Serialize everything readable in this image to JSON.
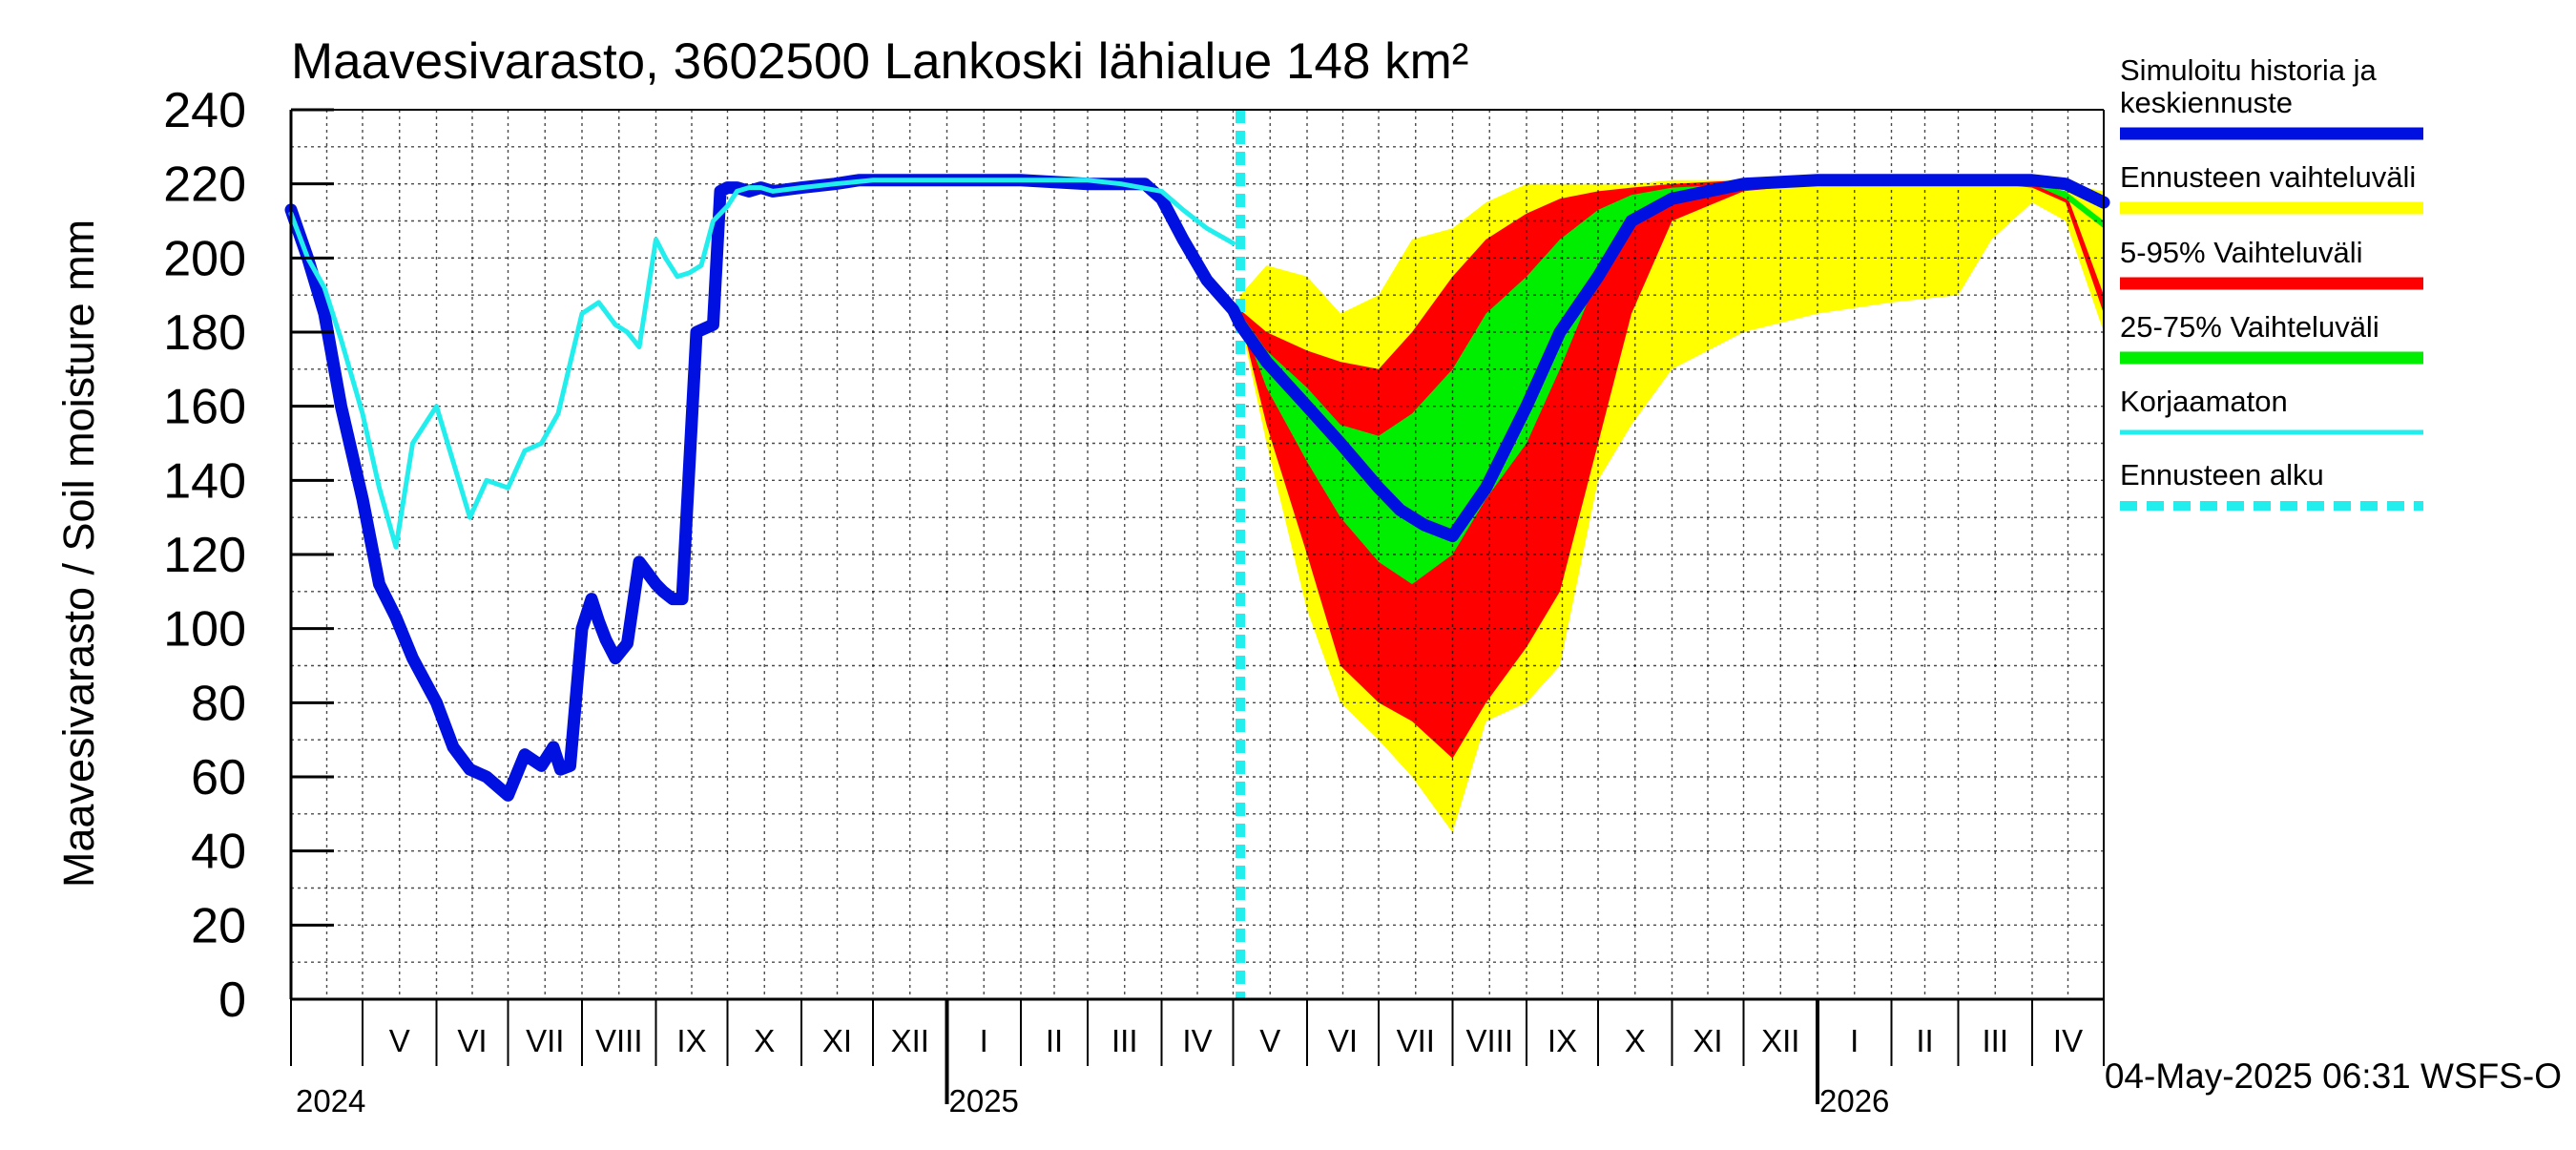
{
  "chart_data": {
    "type": "area",
    "title": "Maavesivarasto, 3602500 Lankoski lähialue 148 km²",
    "ylabel": "Maavesivarasto / Soil moisture   mm",
    "ylim": [
      0,
      240
    ],
    "yticks": [
      0,
      20,
      40,
      60,
      80,
      100,
      120,
      140,
      160,
      180,
      200,
      220,
      240
    ],
    "xlim": [
      "2024-04-01",
      "2026-05-01"
    ],
    "grid": true,
    "legend_position": "right",
    "months": [
      {
        "label": "V",
        "start": "2024-05-01"
      },
      {
        "label": "VI",
        "start": "2024-06-01"
      },
      {
        "label": "VII",
        "start": "2024-07-01"
      },
      {
        "label": "VIII",
        "start": "2024-08-01"
      },
      {
        "label": "IX",
        "start": "2024-09-01"
      },
      {
        "label": "X",
        "start": "2024-10-01"
      },
      {
        "label": "XI",
        "start": "2024-11-01"
      },
      {
        "label": "XII",
        "start": "2024-12-01"
      },
      {
        "label": "I",
        "start": "2025-01-01"
      },
      {
        "label": "II",
        "start": "2025-02-01"
      },
      {
        "label": "III",
        "start": "2025-03-01"
      },
      {
        "label": "IV",
        "start": "2025-04-01"
      },
      {
        "label": "V",
        "start": "2025-05-01"
      },
      {
        "label": "VI",
        "start": "2025-06-01"
      },
      {
        "label": "VII",
        "start": "2025-07-01"
      },
      {
        "label": "VIII",
        "start": "2025-08-01"
      },
      {
        "label": "IX",
        "start": "2025-09-01"
      },
      {
        "label": "X",
        "start": "2025-10-01"
      },
      {
        "label": "XI",
        "start": "2025-11-01"
      },
      {
        "label": "XII",
        "start": "2025-12-01"
      },
      {
        "label": "I",
        "start": "2026-01-01"
      },
      {
        "label": "II",
        "start": "2026-02-01"
      },
      {
        "label": "III",
        "start": "2026-03-01"
      },
      {
        "label": "IV",
        "start": "2026-04-01"
      }
    ],
    "years": [
      {
        "label": "2024",
        "start": "2024-05-01"
      },
      {
        "label": "2025",
        "start": "2025-01-01"
      },
      {
        "label": "2026",
        "start": "2026-01-01"
      }
    ],
    "forecast_start": "2025-05-04",
    "timestamp": "04-May-2025 06:31 WSFS-O",
    "legend": [
      {
        "label": "Simuloitu historia ja keskiennuste",
        "lines": [
          "Simuloitu historia ja",
          "keskiennuste"
        ],
        "color": "#0010e0",
        "style": "thick"
      },
      {
        "label": "Ennusteen vaihteluväli",
        "lines": [
          "Ennusteen vaihteluväli"
        ],
        "color": "#ffff00",
        "style": "band"
      },
      {
        "label": "5-95% Vaihteluväli",
        "lines": [
          "5-95% Vaihteluväli"
        ],
        "color": "#ff0000",
        "style": "band"
      },
      {
        "label": "25-75% Vaihteluväli",
        "lines": [
          "25-75% Vaihteluväli"
        ],
        "color": "#00ee00",
        "style": "band"
      },
      {
        "label": "Korjaamaton",
        "lines": [
          "Korjaamaton"
        ],
        "color": "#22eeee",
        "style": "thin"
      },
      {
        "label": "Ennusteen alku",
        "lines": [
          "Ennusteen alku"
        ],
        "color": "#22eeee",
        "style": "dashed"
      }
    ],
    "series": [
      {
        "name": "Simuloitu historia ja keskiennuste",
        "color": "#0010e0",
        "x": [
          "2024-04-01",
          "2024-04-08",
          "2024-04-15",
          "2024-04-22",
          "2024-05-01",
          "2024-05-08",
          "2024-05-15",
          "2024-05-22",
          "2024-06-01",
          "2024-06-08",
          "2024-06-15",
          "2024-06-22",
          "2024-07-01",
          "2024-07-08",
          "2024-07-15",
          "2024-07-20",
          "2024-07-23",
          "2024-07-27",
          "2024-08-01",
          "2024-08-05",
          "2024-08-08",
          "2024-08-11",
          "2024-08-15",
          "2024-08-20",
          "2024-08-25",
          "2024-09-01",
          "2024-09-04",
          "2024-09-08",
          "2024-09-12",
          "2024-09-18",
          "2024-09-25",
          "2024-09-28",
          "2024-10-01",
          "2024-10-05",
          "2024-10-10",
          "2024-10-15",
          "2024-10-20",
          "2024-11-01",
          "2024-11-15",
          "2024-11-25",
          "2024-12-01",
          "2025-01-01",
          "2025-02-01",
          "2025-03-01",
          "2025-03-15",
          "2025-03-25",
          "2025-04-01",
          "2025-04-10",
          "2025-04-20",
          "2025-05-01",
          "2025-05-04",
          "2025-05-15",
          "2025-06-01",
          "2025-06-15",
          "2025-07-01",
          "2025-07-10",
          "2025-07-20",
          "2025-08-01",
          "2025-08-15",
          "2025-09-01",
          "2025-09-15",
          "2025-10-01",
          "2025-10-15",
          "2025-11-01",
          "2025-12-01",
          "2026-01-01",
          "2026-02-01",
          "2026-03-01",
          "2026-04-01",
          "2026-04-15",
          "2026-05-01"
        ],
        "y": [
          213,
          200,
          185,
          160,
          135,
          112,
          103,
          92,
          80,
          68,
          62,
          60,
          55,
          66,
          63,
          68,
          62,
          63,
          100,
          108,
          102,
          97,
          92,
          96,
          118,
          112,
          110,
          108,
          108,
          180,
          182,
          218,
          219,
          219,
          218,
          219,
          218,
          219,
          220,
          221,
          221,
          221,
          221,
          220,
          220,
          220,
          216,
          205,
          194,
          186,
          182,
          172,
          160,
          150,
          138,
          132,
          128,
          125,
          138,
          160,
          180,
          195,
          210,
          216,
          220,
          221,
          221,
          221,
          221,
          220,
          215
        ]
      },
      {
        "name": "Korjaamaton",
        "color": "#22eeee",
        "x": [
          "2024-04-01",
          "2024-04-08",
          "2024-04-15",
          "2024-04-22",
          "2024-05-01",
          "2024-05-08",
          "2024-05-15",
          "2024-05-22",
          "2024-06-01",
          "2024-06-08",
          "2024-06-15",
          "2024-06-22",
          "2024-07-01",
          "2024-07-08",
          "2024-07-15",
          "2024-07-22",
          "2024-08-01",
          "2024-08-08",
          "2024-08-15",
          "2024-08-20",
          "2024-08-25",
          "2024-09-01",
          "2024-09-05",
          "2024-09-10",
          "2024-09-15",
          "2024-09-20",
          "2024-09-25",
          "2024-10-01",
          "2024-10-05",
          "2024-10-10",
          "2024-10-15",
          "2024-10-20",
          "2024-11-01",
          "2024-11-15",
          "2024-12-01",
          "2025-01-01",
          "2025-02-01",
          "2025-03-01",
          "2025-03-15",
          "2025-04-01",
          "2025-04-10",
          "2025-04-20",
          "2025-05-01"
        ],
        "y": [
          212,
          200,
          192,
          178,
          158,
          138,
          122,
          150,
          160,
          145,
          130,
          140,
          138,
          148,
          150,
          158,
          185,
          188,
          182,
          180,
          176,
          205,
          200,
          195,
          196,
          198,
          210,
          214,
          218,
          219,
          219,
          218,
          219,
          220,
          221,
          221,
          221,
          221,
          220,
          218,
          213,
          208,
          204
        ]
      }
    ],
    "bands": [
      {
        "name": "Ennusteen vaihteluväli",
        "color": "#ffff00",
        "x": [
          "2025-05-04",
          "2025-05-15",
          "2025-06-01",
          "2025-06-15",
          "2025-07-01",
          "2025-07-15",
          "2025-08-01",
          "2025-08-15",
          "2025-09-01",
          "2025-09-15",
          "2025-10-01",
          "2025-10-15",
          "2025-11-01",
          "2025-12-01",
          "2026-01-01",
          "2026-02-01",
          "2026-03-01",
          "2026-03-15",
          "2026-04-01",
          "2026-04-15",
          "2026-05-01"
        ],
        "upper": [
          190,
          198,
          195,
          185,
          190,
          205,
          208,
          215,
          220,
          220,
          220,
          220,
          221,
          221,
          221,
          221,
          221,
          221,
          221,
          220,
          218
        ],
        "lower": [
          183,
          150,
          105,
          80,
          70,
          60,
          45,
          75,
          80,
          90,
          140,
          155,
          170,
          180,
          185,
          188,
          190,
          205,
          215,
          210,
          180
        ]
      },
      {
        "name": "5-95% Vaihteluväli",
        "color": "#ff0000",
        "x": [
          "2025-05-04",
          "2025-05-15",
          "2025-06-01",
          "2025-06-15",
          "2025-07-01",
          "2025-07-15",
          "2025-08-01",
          "2025-08-15",
          "2025-09-01",
          "2025-09-15",
          "2025-10-01",
          "2025-10-15",
          "2025-11-01",
          "2025-12-01",
          "2026-01-01",
          "2026-02-01",
          "2026-03-01",
          "2026-04-01",
          "2026-04-15",
          "2026-05-01"
        ],
        "upper": [
          186,
          180,
          175,
          172,
          170,
          180,
          195,
          205,
          212,
          216,
          218,
          219,
          220,
          221,
          221,
          221,
          221,
          220,
          218,
          190
        ],
        "lower": [
          184,
          155,
          120,
          90,
          80,
          75,
          65,
          80,
          95,
          110,
          150,
          185,
          210,
          218,
          220,
          221,
          221,
          219,
          215,
          185
        ]
      },
      {
        "name": "25-75% Vaihteluväli",
        "color": "#00ee00",
        "x": [
          "2025-05-04",
          "2025-05-15",
          "2025-06-01",
          "2025-06-15",
          "2025-07-01",
          "2025-07-15",
          "2025-08-01",
          "2025-08-15",
          "2025-09-01",
          "2025-09-15",
          "2025-10-01",
          "2025-10-15",
          "2025-11-01",
          "2025-12-01",
          "2026-01-01",
          "2026-02-01",
          "2026-03-01",
          "2026-04-01",
          "2026-04-15",
          "2026-05-01"
        ],
        "upper": [
          185,
          175,
          165,
          155,
          152,
          158,
          170,
          185,
          195,
          205,
          213,
          217,
          219,
          220,
          221,
          221,
          221,
          220,
          218,
          210
        ],
        "lower": [
          184,
          165,
          145,
          130,
          118,
          112,
          120,
          135,
          150,
          170,
          195,
          210,
          217,
          220,
          221,
          221,
          221,
          220,
          216,
          208
        ]
      }
    ]
  }
}
